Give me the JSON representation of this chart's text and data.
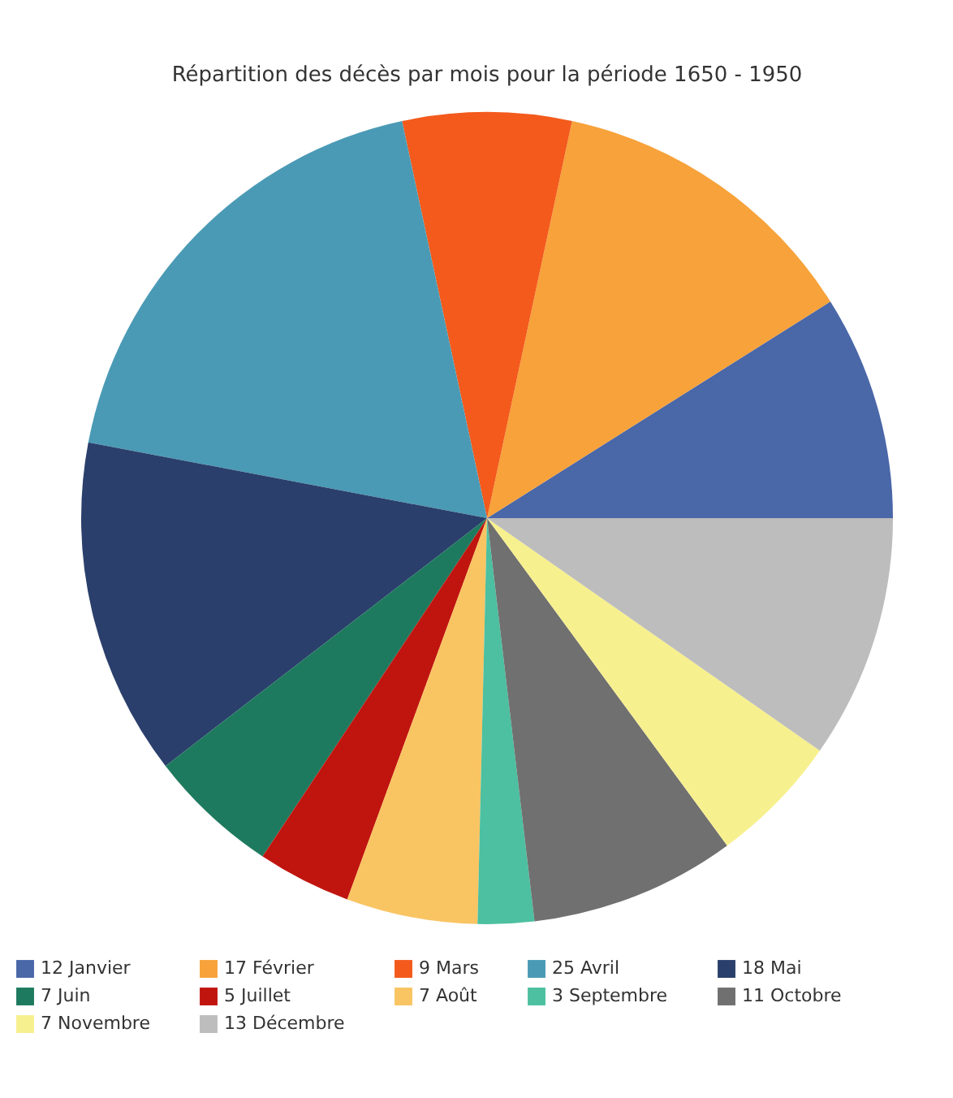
{
  "chart_data": {
    "type": "pie",
    "title": "Répartition des décès par mois pour la période 1650 - 1950",
    "categories": [
      "12 Janvier",
      "17 Février",
      "9 Mars",
      "25 Avril",
      "18 Mai",
      "7 Juin",
      "5 Juillet",
      "7 Août",
      "3 Septembre",
      "11 Octobre",
      "7 Novembre",
      "13 Décembre"
    ],
    "values": [
      12,
      17,
      9,
      25,
      18,
      7,
      5,
      7,
      3,
      11,
      7,
      13
    ],
    "colors": [
      "#4a67a8",
      "#f7a23a",
      "#f35a1c",
      "#4a9ab5",
      "#2a3f6b",
      "#1e7a5e",
      "#c0150f",
      "#f9c462",
      "#4cc0a0",
      "#707070",
      "#f7f08e",
      "#bdbdbd"
    ],
    "legend": "bottom"
  }
}
